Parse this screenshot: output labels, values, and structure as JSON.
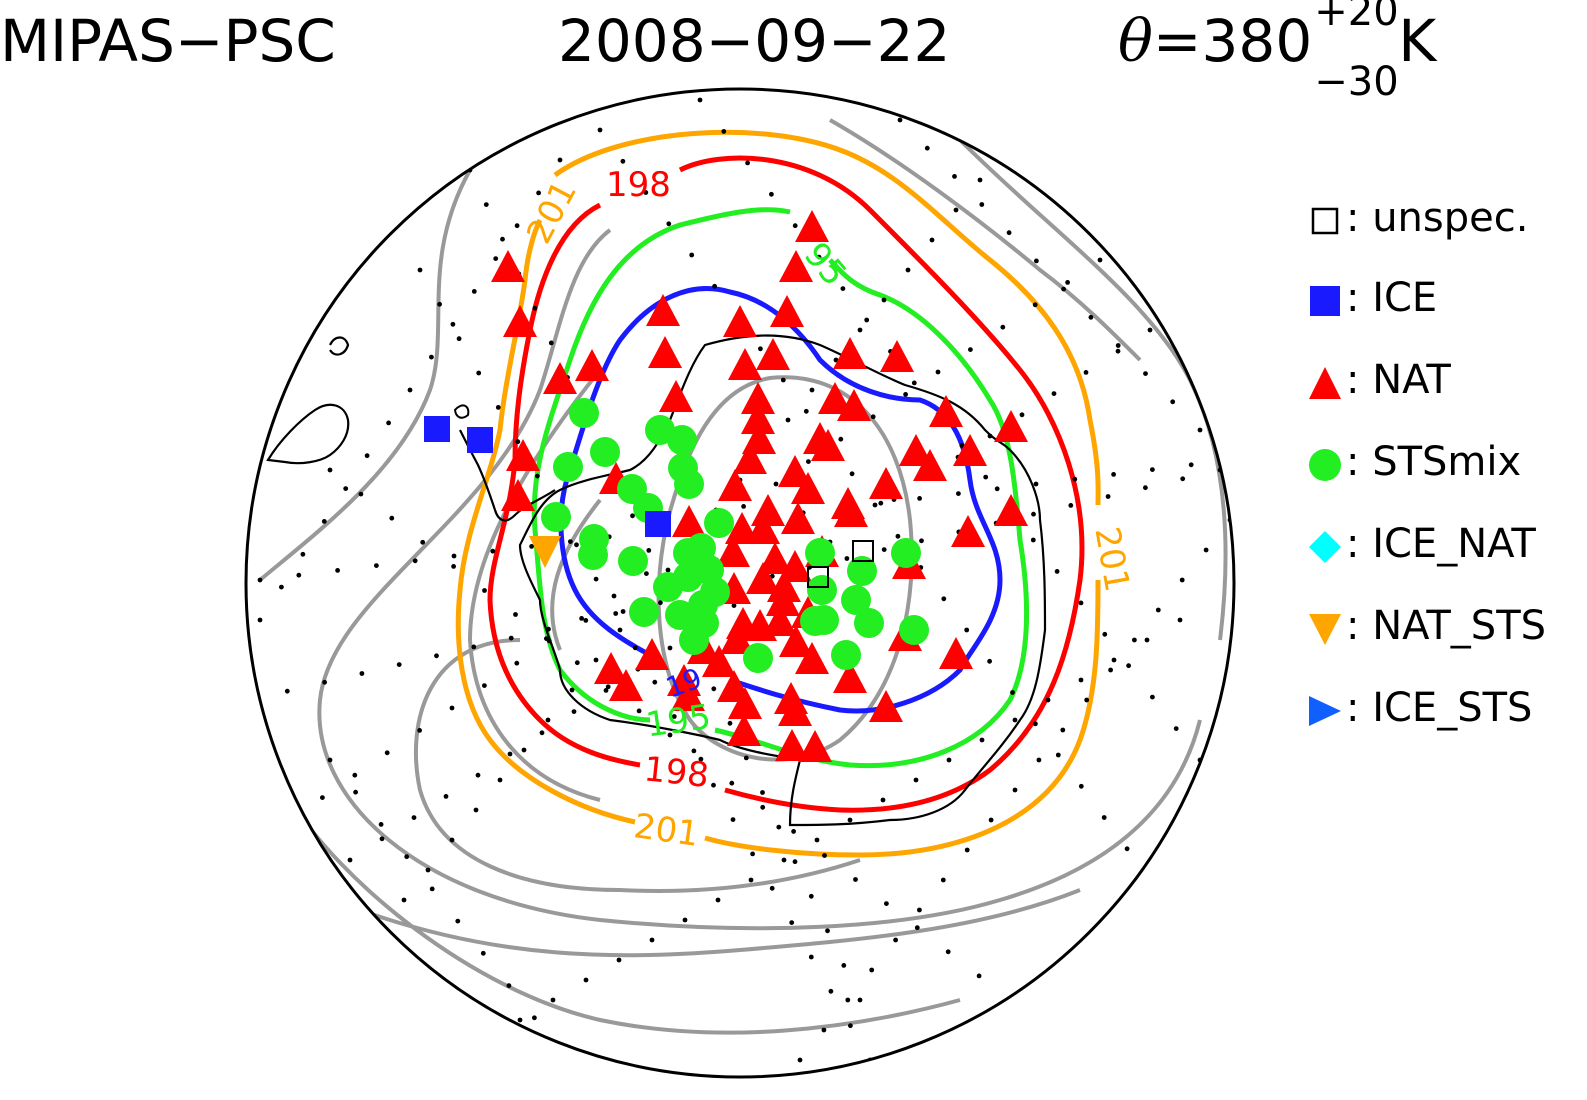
{
  "header": {
    "instrument": "MIPAS−PSC",
    "date": "2008−09−22",
    "theta_symbol": "θ",
    "theta_value": "=380",
    "theta_plus": "+20",
    "theta_minus": "−30",
    "theta_unit": "K"
  },
  "contour_labels": {
    "orange_top": "201",
    "orange_right": "201",
    "orange_bottom": "201",
    "red_top": "198",
    "red_bottom": "198",
    "green_top": "95",
    "green_bottom": "195",
    "blue_bottom": "19"
  },
  "legend": [
    {
      "key": "unspec",
      "label": ": unspec.",
      "marker": "open-square",
      "color": "#000000"
    },
    {
      "key": "ice",
      "label": ": ICE",
      "marker": "square",
      "color": "#1a1aff"
    },
    {
      "key": "nat",
      "label": ": NAT",
      "marker": "triangle-up",
      "color": "#ff0000"
    },
    {
      "key": "stsmix",
      "label": ": STSmix",
      "marker": "circle",
      "color": "#22ee22"
    },
    {
      "key": "ice_nat",
      "label": ": ICE_NAT",
      "marker": "diamond",
      "color": "#00ffff"
    },
    {
      "key": "nat_sts",
      "label": ": NAT_STS",
      "marker": "triangle-down",
      "color": "#ffa500"
    },
    {
      "key": "ice_sts",
      "label": ": ICE_STS",
      "marker": "triangle-right",
      "color": "#1060ff"
    }
  ],
  "colors": {
    "contour_gray": "#999999",
    "contour_orange": "#ffa500",
    "contour_red": "#ff0000",
    "contour_green": "#22ee22",
    "contour_blue": "#1a1aff",
    "coast": "#000000"
  }
}
